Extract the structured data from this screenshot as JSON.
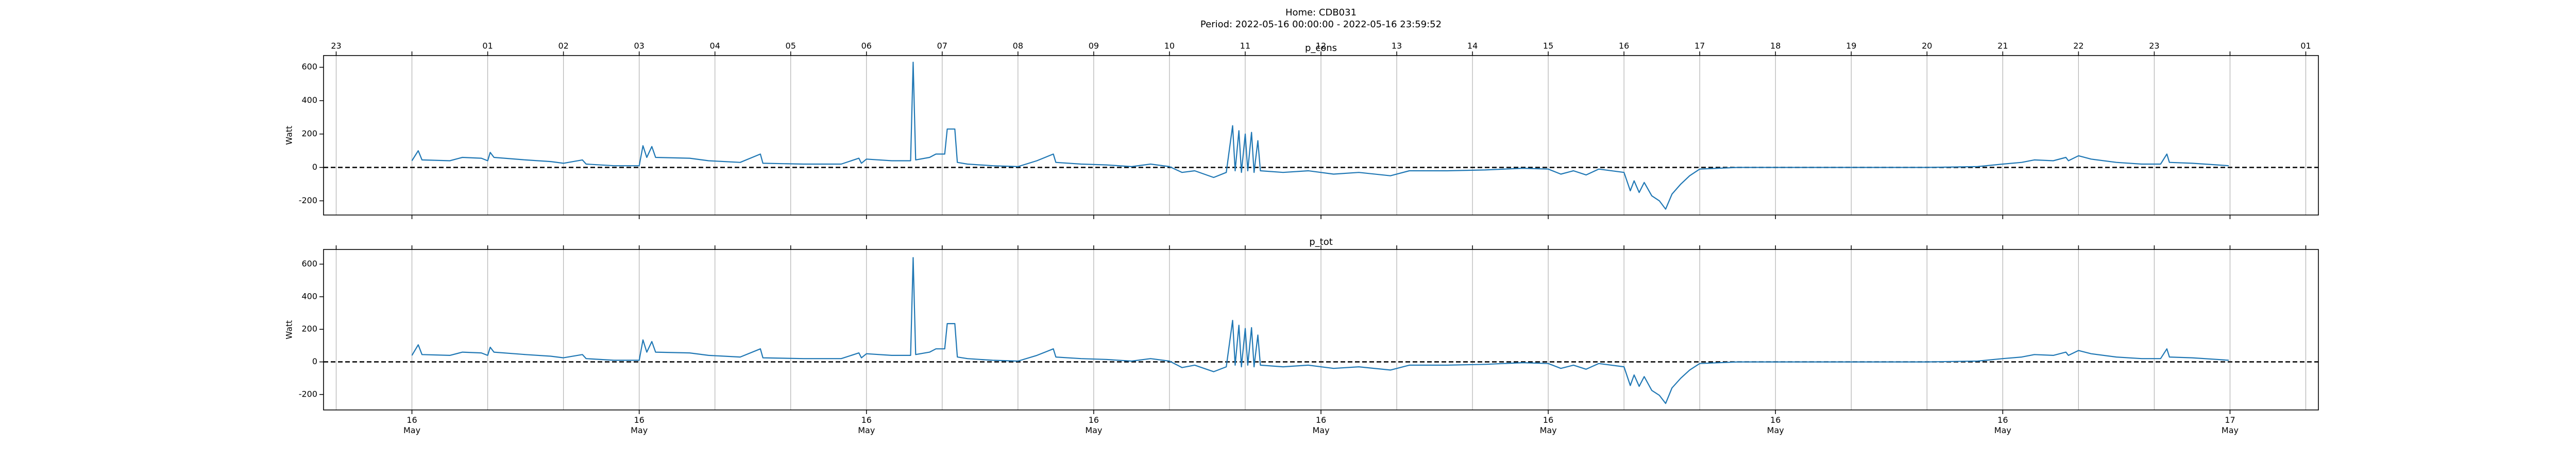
{
  "title": "Home: CDB031",
  "subtitle": "Period: 2022-05-16 00:00:00 - 2022-05-16 23:59:52",
  "chart_data": [
    {
      "type": "line",
      "title": "p_cons",
      "ylabel": "Watt",
      "ylim": [
        -285,
        670
      ],
      "yticks": [
        -200,
        0,
        200,
        400,
        600
      ],
      "hline": 0,
      "grid": true,
      "xlim": [
        "2022-05-15 22:50",
        "2022-05-17 01:10"
      ],
      "x2ticks": [
        {
          "value": "2022-05-15 23:00",
          "label": "23"
        },
        {
          "value": "2022-05-16 00:00",
          "label": null
        },
        {
          "value": "2022-05-16 01:00",
          "label": "01"
        },
        {
          "value": "2022-05-16 02:00",
          "label": "02"
        },
        {
          "value": "2022-05-16 03:00",
          "label": "03"
        },
        {
          "value": "2022-05-16 04:00",
          "label": "04"
        },
        {
          "value": "2022-05-16 05:00",
          "label": "05"
        },
        {
          "value": "2022-05-16 06:00",
          "label": "06"
        },
        {
          "value": "2022-05-16 07:00",
          "label": "07"
        },
        {
          "value": "2022-05-16 08:00",
          "label": "08"
        },
        {
          "value": "2022-05-16 09:00",
          "label": "09"
        },
        {
          "value": "2022-05-16 10:00",
          "label": "10"
        },
        {
          "value": "2022-05-16 11:00",
          "label": "11"
        },
        {
          "value": "2022-05-16 12:00",
          "label": "12"
        },
        {
          "value": "2022-05-16 13:00",
          "label": "13"
        },
        {
          "value": "2022-05-16 14:00",
          "label": "14"
        },
        {
          "value": "2022-05-16 15:00",
          "label": "15"
        },
        {
          "value": "2022-05-16 16:00",
          "label": "16"
        },
        {
          "value": "2022-05-16 17:00",
          "label": "17"
        },
        {
          "value": "2022-05-16 18:00",
          "label": "18"
        },
        {
          "value": "2022-05-16 19:00",
          "label": "19"
        },
        {
          "value": "2022-05-16 20:00",
          "label": "20"
        },
        {
          "value": "2022-05-16 21:00",
          "label": "21"
        },
        {
          "value": "2022-05-16 22:00",
          "label": "22"
        },
        {
          "value": "2022-05-16 23:00",
          "label": "23"
        },
        {
          "value": "2022-05-17 00:00",
          "label": null
        },
        {
          "value": "2022-05-17 01:00",
          "label": "01"
        }
      ],
      "xticks": [
        {
          "value": "2022-05-16 00:00",
          "label": null
        },
        {
          "value": "2022-05-16 03:00",
          "label": null
        },
        {
          "value": "2022-05-16 06:00",
          "label": null
        },
        {
          "value": "2022-05-16 09:00",
          "label": null
        },
        {
          "value": "2022-05-16 12:00",
          "label": null
        },
        {
          "value": "2022-05-16 15:00",
          "label": null
        },
        {
          "value": "2022-05-16 18:00",
          "label": null
        },
        {
          "value": "2022-05-16 21:00",
          "label": null
        },
        {
          "value": "2022-05-17 00:00",
          "label": null
        }
      ],
      "x": [
        "2022-05-16 00:00",
        "2022-05-16 00:05",
        "2022-05-16 00:08",
        "2022-05-16 00:30",
        "2022-05-16 00:40",
        "2022-05-16 00:55",
        "2022-05-16 01:00",
        "2022-05-16 01:02",
        "2022-05-16 01:05",
        "2022-05-16 01:30",
        "2022-05-16 01:50",
        "2022-05-16 02:00",
        "2022-05-16 02:15",
        "2022-05-16 02:18",
        "2022-05-16 02:40",
        "2022-05-16 03:00",
        "2022-05-16 03:03",
        "2022-05-16 03:06",
        "2022-05-16 03:10",
        "2022-05-16 03:13",
        "2022-05-16 03:40",
        "2022-05-16 03:55",
        "2022-05-16 04:20",
        "2022-05-16 04:36",
        "2022-05-16 04:38",
        "2022-05-16 05:10",
        "2022-05-16 05:40",
        "2022-05-16 05:54",
        "2022-05-16 05:56",
        "2022-05-16 06:00",
        "2022-05-16 06:20",
        "2022-05-16 06:35",
        "2022-05-16 06:37",
        "2022-05-16 06:39",
        "2022-05-16 06:50",
        "2022-05-16 06:55",
        "2022-05-16 07:02",
        "2022-05-16 07:04",
        "2022-05-16 07:10",
        "2022-05-16 07:12",
        "2022-05-16 07:20",
        "2022-05-16 07:40",
        "2022-05-16 08:00",
        "2022-05-16 08:15",
        "2022-05-16 08:28",
        "2022-05-16 08:30",
        "2022-05-16 08:50",
        "2022-05-16 09:10",
        "2022-05-16 09:30",
        "2022-05-16 09:45",
        "2022-05-16 10:00",
        "2022-05-16 10:10",
        "2022-05-16 10:20",
        "2022-05-16 10:35",
        "2022-05-16 10:45",
        "2022-05-16 10:50",
        "2022-05-16 10:52",
        "2022-05-16 10:55",
        "2022-05-16 10:57",
        "2022-05-16 11:00",
        "2022-05-16 11:02",
        "2022-05-16 11:05",
        "2022-05-16 11:07",
        "2022-05-16 11:10",
        "2022-05-16 11:12",
        "2022-05-16 11:30",
        "2022-05-16 11:50",
        "2022-05-16 12:10",
        "2022-05-16 12:30",
        "2022-05-16 12:55",
        "2022-05-16 13:10",
        "2022-05-16 13:40",
        "2022-05-16 14:10",
        "2022-05-16 14:40",
        "2022-05-16 15:00",
        "2022-05-16 15:10",
        "2022-05-16 15:20",
        "2022-05-16 15:30",
        "2022-05-16 15:40",
        "2022-05-16 16:00",
        "2022-05-16 16:05",
        "2022-05-16 16:08",
        "2022-05-16 16:12",
        "2022-05-16 16:16",
        "2022-05-16 16:22",
        "2022-05-16 16:28",
        "2022-05-16 16:33",
        "2022-05-16 16:38",
        "2022-05-16 16:45",
        "2022-05-16 16:52",
        "2022-05-16 17:00",
        "2022-05-16 17:30",
        "2022-05-16 18:00",
        "2022-05-16 19:00",
        "2022-05-16 20:00",
        "2022-05-16 20:40",
        "2022-05-16 21:00",
        "2022-05-16 21:15",
        "2022-05-16 21:25",
        "2022-05-16 21:40",
        "2022-05-16 21:50",
        "2022-05-16 21:52",
        "2022-05-16 22:00",
        "2022-05-16 22:10",
        "2022-05-16 22:30",
        "2022-05-16 22:50",
        "2022-05-16 23:05",
        "2022-05-16 23:10",
        "2022-05-16 23:12",
        "2022-05-16 23:30",
        "2022-05-16 23:50",
        "2022-05-16 23:59"
      ],
      "series": [
        {
          "name": "p_cons",
          "color": "#1f77b4",
          "values": [
            40,
            100,
            45,
            40,
            60,
            55,
            40,
            90,
            60,
            45,
            35,
            25,
            45,
            20,
            10,
            10,
            130,
            60,
            125,
            60,
            55,
            40,
            30,
            80,
            25,
            20,
            20,
            55,
            25,
            50,
            40,
            40,
            630,
            45,
            60,
            80,
            80,
            230,
            230,
            30,
            20,
            10,
            5,
            40,
            80,
            30,
            20,
            15,
            5,
            20,
            5,
            -30,
            -20,
            -60,
            -30,
            250,
            -20,
            220,
            -30,
            200,
            -20,
            210,
            -30,
            160,
            -20,
            -30,
            -20,
            -40,
            -30,
            -50,
            -20,
            -20,
            -15,
            -5,
            -10,
            -40,
            -20,
            -45,
            -10,
            -30,
            -140,
            -80,
            -150,
            -90,
            -170,
            -200,
            -250,
            -160,
            -100,
            -50,
            -10,
            0,
            0,
            0,
            0,
            5,
            20,
            30,
            45,
            40,
            60,
            40,
            70,
            50,
            30,
            20,
            20,
            80,
            30,
            25,
            15,
            10
          ]
        }
      ]
    },
    {
      "type": "line",
      "title": "p_tot",
      "ylabel": "Watt",
      "ylim": [
        -295,
        690
      ],
      "yticks": [
        -200,
        0,
        200,
        400,
        600
      ],
      "hline": 0,
      "grid": true,
      "xlim": [
        "2022-05-15 22:50",
        "2022-05-17 01:10"
      ],
      "x2ticks": [
        {
          "value": "2022-05-15 23:00",
          "label": null
        },
        {
          "value": "2022-05-16 00:00",
          "label": null
        },
        {
          "value": "2022-05-16 01:00",
          "label": null
        },
        {
          "value": "2022-05-16 02:00",
          "label": null
        },
        {
          "value": "2022-05-16 03:00",
          "label": null
        },
        {
          "value": "2022-05-16 04:00",
          "label": null
        },
        {
          "value": "2022-05-16 05:00",
          "label": null
        },
        {
          "value": "2022-05-16 06:00",
          "label": null
        },
        {
          "value": "2022-05-16 07:00",
          "label": null
        },
        {
          "value": "2022-05-16 08:00",
          "label": null
        },
        {
          "value": "2022-05-16 09:00",
          "label": null
        },
        {
          "value": "2022-05-16 10:00",
          "label": null
        },
        {
          "value": "2022-05-16 11:00",
          "label": null
        },
        {
          "value": "2022-05-16 12:00",
          "label": null
        },
        {
          "value": "2022-05-16 13:00",
          "label": null
        },
        {
          "value": "2022-05-16 14:00",
          "label": null
        },
        {
          "value": "2022-05-16 15:00",
          "label": null
        },
        {
          "value": "2022-05-16 16:00",
          "label": null
        },
        {
          "value": "2022-05-16 17:00",
          "label": null
        },
        {
          "value": "2022-05-16 18:00",
          "label": null
        },
        {
          "value": "2022-05-16 19:00",
          "label": null
        },
        {
          "value": "2022-05-16 20:00",
          "label": null
        },
        {
          "value": "2022-05-16 21:00",
          "label": null
        },
        {
          "value": "2022-05-16 22:00",
          "label": null
        },
        {
          "value": "2022-05-16 23:00",
          "label": null
        },
        {
          "value": "2022-05-17 00:00",
          "label": null
        },
        {
          "value": "2022-05-17 01:00",
          "label": null
        }
      ],
      "xticks": [
        {
          "value": "2022-05-16 00:00",
          "label": "16\nMay"
        },
        {
          "value": "2022-05-16 03:00",
          "label": "16\nMay"
        },
        {
          "value": "2022-05-16 06:00",
          "label": "16\nMay"
        },
        {
          "value": "2022-05-16 09:00",
          "label": "16\nMay"
        },
        {
          "value": "2022-05-16 12:00",
          "label": "16\nMay"
        },
        {
          "value": "2022-05-16 15:00",
          "label": "16\nMay"
        },
        {
          "value": "2022-05-16 18:00",
          "label": "16\nMay"
        },
        {
          "value": "2022-05-16 21:00",
          "label": "16\nMay"
        },
        {
          "value": "2022-05-17 00:00",
          "label": "17\nMay"
        }
      ],
      "x": [
        "2022-05-16 00:00",
        "2022-05-16 00:05",
        "2022-05-16 00:08",
        "2022-05-16 00:30",
        "2022-05-16 00:40",
        "2022-05-16 00:55",
        "2022-05-16 01:00",
        "2022-05-16 01:02",
        "2022-05-16 01:05",
        "2022-05-16 01:30",
        "2022-05-16 01:50",
        "2022-05-16 02:00",
        "2022-05-16 02:15",
        "2022-05-16 02:18",
        "2022-05-16 02:40",
        "2022-05-16 03:00",
        "2022-05-16 03:03",
        "2022-05-16 03:06",
        "2022-05-16 03:10",
        "2022-05-16 03:13",
        "2022-05-16 03:40",
        "2022-05-16 03:55",
        "2022-05-16 04:20",
        "2022-05-16 04:36",
        "2022-05-16 04:38",
        "2022-05-16 05:10",
        "2022-05-16 05:40",
        "2022-05-16 05:54",
        "2022-05-16 05:56",
        "2022-05-16 06:00",
        "2022-05-16 06:20",
        "2022-05-16 06:35",
        "2022-05-16 06:37",
        "2022-05-16 06:39",
        "2022-05-16 06:50",
        "2022-05-16 06:55",
        "2022-05-16 07:02",
        "2022-05-16 07:04",
        "2022-05-16 07:10",
        "2022-05-16 07:12",
        "2022-05-16 07:20",
        "2022-05-16 07:40",
        "2022-05-16 08:00",
        "2022-05-16 08:15",
        "2022-05-16 08:28",
        "2022-05-16 08:30",
        "2022-05-16 08:50",
        "2022-05-16 09:10",
        "2022-05-16 09:30",
        "2022-05-16 09:45",
        "2022-05-16 10:00",
        "2022-05-16 10:10",
        "2022-05-16 10:20",
        "2022-05-16 10:35",
        "2022-05-16 10:45",
        "2022-05-16 10:50",
        "2022-05-16 10:52",
        "2022-05-16 10:55",
        "2022-05-16 10:57",
        "2022-05-16 11:00",
        "2022-05-16 11:02",
        "2022-05-16 11:05",
        "2022-05-16 11:07",
        "2022-05-16 11:10",
        "2022-05-16 11:12",
        "2022-05-16 11:30",
        "2022-05-16 11:50",
        "2022-05-16 12:10",
        "2022-05-16 12:30",
        "2022-05-16 12:55",
        "2022-05-16 13:10",
        "2022-05-16 13:40",
        "2022-05-16 14:10",
        "2022-05-16 14:40",
        "2022-05-16 15:00",
        "2022-05-16 15:10",
        "2022-05-16 15:20",
        "2022-05-16 15:30",
        "2022-05-16 15:40",
        "2022-05-16 16:00",
        "2022-05-16 16:05",
        "2022-05-16 16:08",
        "2022-05-16 16:12",
        "2022-05-16 16:16",
        "2022-05-16 16:22",
        "2022-05-16 16:28",
        "2022-05-16 16:33",
        "2022-05-16 16:38",
        "2022-05-16 16:45",
        "2022-05-16 16:52",
        "2022-05-16 17:00",
        "2022-05-16 17:30",
        "2022-05-16 18:00",
        "2022-05-16 19:00",
        "2022-05-16 20:00",
        "2022-05-16 20:40",
        "2022-05-16 21:00",
        "2022-05-16 21:15",
        "2022-05-16 21:25",
        "2022-05-16 21:40",
        "2022-05-16 21:50",
        "2022-05-16 21:52",
        "2022-05-16 22:00",
        "2022-05-16 22:10",
        "2022-05-16 22:30",
        "2022-05-16 22:50",
        "2022-05-16 23:05",
        "2022-05-16 23:10",
        "2022-05-16 23:12",
        "2022-05-16 23:30",
        "2022-05-16 23:50",
        "2022-05-16 23:59"
      ],
      "series": [
        {
          "name": "p_tot",
          "color": "#1f77b4",
          "values": [
            40,
            105,
            45,
            40,
            60,
            55,
            40,
            90,
            60,
            45,
            35,
            25,
            45,
            20,
            10,
            10,
            135,
            60,
            125,
            60,
            55,
            40,
            30,
            80,
            25,
            20,
            20,
            55,
            25,
            50,
            40,
            40,
            640,
            45,
            60,
            80,
            80,
            235,
            235,
            30,
            20,
            10,
            5,
            40,
            80,
            30,
            20,
            15,
            5,
            20,
            5,
            -35,
            -20,
            -60,
            -30,
            255,
            -20,
            225,
            -30,
            205,
            -20,
            210,
            -30,
            165,
            -20,
            -30,
            -20,
            -40,
            -30,
            -50,
            -20,
            -20,
            -15,
            -5,
            -10,
            -40,
            -20,
            -45,
            -10,
            -30,
            -145,
            -80,
            -150,
            -90,
            -175,
            -205,
            -255,
            -160,
            -100,
            -50,
            -10,
            0,
            0,
            0,
            0,
            5,
            20,
            30,
            45,
            40,
            60,
            40,
            70,
            50,
            30,
            20,
            20,
            80,
            30,
            25,
            15,
            10
          ]
        }
      ]
    }
  ]
}
